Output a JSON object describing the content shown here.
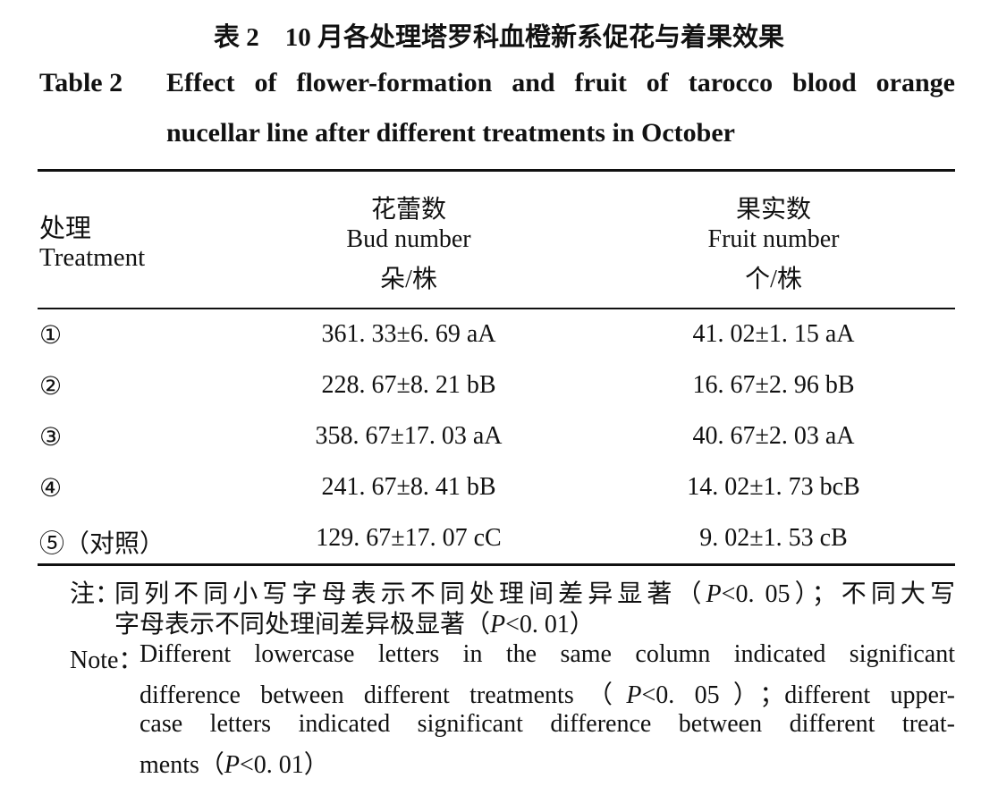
{
  "caption": {
    "zh": "表 2　10 月各处理塔罗科血橙新系促花与着果效果",
    "en_label": "Table 2",
    "en_lines": [
      "Effect of flower-formation and fruit of tarocco blood orange",
      "nucellar line after different treatments in October"
    ]
  },
  "table": {
    "header": [
      [
        "处理",
        "Treatment"
      ],
      [
        "花蕾数",
        "Bud number",
        "朵/株"
      ],
      [
        "果实数",
        "Fruit number",
        "个/株"
      ]
    ],
    "rows": [
      [
        "①",
        "361. 33±6. 69 aA",
        "41. 02±1. 15 aA"
      ],
      [
        "②",
        "228. 67±8. 21 bB",
        "16. 67±2. 96 bB"
      ],
      [
        "③",
        "358. 67±17. 03 aA",
        "40. 67±2. 03 aA"
      ],
      [
        "④",
        "241. 67±8. 41 bB",
        "14. 02±1. 73 bcB"
      ],
      [
        "⑤（对照）",
        "129. 67±17. 07 cC",
        "9. 02±1. 53 cB"
      ]
    ]
  },
  "notes": {
    "zh": {
      "label": "注：",
      "lines": [
        [
          "同列不同小写字母表示不同处理间差异显著（",
          "P",
          "<0. 05）；不同大写"
        ],
        [
          "字母表示不同处理间差异极显著（",
          "P",
          "<0. 01）"
        ]
      ]
    },
    "en": {
      "label": "Note：",
      "lines": [
        [
          "Different lowercase letters in the same column indicated significant"
        ],
        [
          "difference between different treatments（",
          "P",
          "<0. 05）；different upper-"
        ],
        [
          "case letters indicated significant difference between different treat-"
        ],
        [
          "ments（",
          "P",
          "<0. 01）"
        ]
      ]
    }
  }
}
